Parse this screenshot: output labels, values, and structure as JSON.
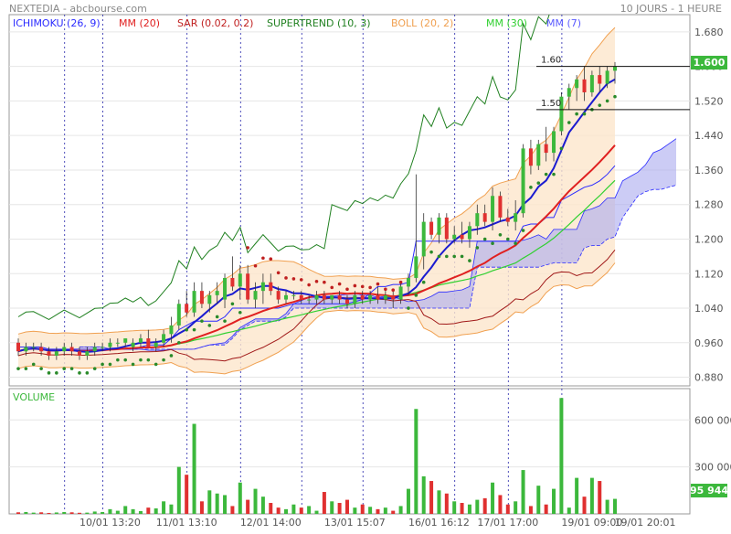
{
  "header": {
    "title": "NEXTEDIA - abcbourse.com",
    "period": "10 JOURS - 1 HEURE"
  },
  "legend": [
    {
      "label": "ICHIMOKU (26, 9)",
      "color": "#2b2bff"
    },
    {
      "label": "MM (20)",
      "color": "#e02020"
    },
    {
      "label": "SAR (0.02, 0.2)",
      "color": "#c02020"
    },
    {
      "label": "SUPERTREND (10, 3)",
      "color": "#208020"
    },
    {
      "label": "BOLL (20, 2)",
      "color": "#f0a050"
    },
    {
      "label": "MM (30)",
      "color": "#30d030"
    },
    {
      "label": "MM (7)",
      "color": "#5a5aff"
    }
  ],
  "volume_label": "VOLUME",
  "colors": {
    "up": "#3cb83c",
    "down": "#e03030",
    "ichimoku_cloud": "#aaaaee",
    "boll_fill": "#fde6cc",
    "price_tag": "#3cb83c"
  },
  "chart_data": [
    {
      "type": "candlestick",
      "ylim": [
        0.86,
        1.72
      ],
      "y_ticks": [
        "0.880",
        "0.960",
        "1.040",
        "1.120",
        "1.200",
        "1.280",
        "1.360",
        "1.440",
        "1.520",
        "1.600",
        "1.680"
      ],
      "x_ticks": [
        "10/01 13:20",
        "11/01 13:10",
        "12/01 14:00",
        "13/01 15:07",
        "16/01 16:12",
        "17/01 17:00",
        "19/01 09:00",
        "19/01 20:01"
      ],
      "last_price": "1.600",
      "levels": [
        {
          "label": "1.60",
          "value": 1.6
        },
        {
          "label": "1.50",
          "value": 1.5
        }
      ],
      "candles": [
        [
          0.96,
          0.97,
          0.93,
          0.94
        ],
        [
          0.94,
          0.96,
          0.93,
          0.95
        ],
        [
          0.95,
          0.96,
          0.94,
          0.95
        ],
        [
          0.95,
          0.96,
          0.93,
          0.94
        ],
        [
          0.94,
          0.95,
          0.92,
          0.93
        ],
        [
          0.93,
          0.95,
          0.92,
          0.94
        ],
        [
          0.94,
          0.96,
          0.93,
          0.95
        ],
        [
          0.95,
          0.96,
          0.93,
          0.94
        ],
        [
          0.94,
          0.95,
          0.92,
          0.93
        ],
        [
          0.93,
          0.95,
          0.92,
          0.94
        ],
        [
          0.94,
          0.96,
          0.93,
          0.95
        ],
        [
          0.95,
          0.96,
          0.94,
          0.95
        ],
        [
          0.95,
          0.97,
          0.94,
          0.96
        ],
        [
          0.96,
          0.97,
          0.95,
          0.96
        ],
        [
          0.96,
          0.97,
          0.95,
          0.97
        ],
        [
          0.95,
          0.97,
          0.94,
          0.96
        ],
        [
          0.96,
          0.98,
          0.95,
          0.97
        ],
        [
          0.97,
          0.99,
          0.95,
          0.95
        ],
        [
          0.95,
          0.97,
          0.94,
          0.96
        ],
        [
          0.96,
          0.99,
          0.95,
          0.98
        ],
        [
          0.98,
          1.02,
          0.96,
          1.0
        ],
        [
          1.0,
          1.06,
          0.99,
          1.05
        ],
        [
          1.05,
          1.08,
          1.02,
          1.03
        ],
        [
          1.03,
          1.1,
          1.02,
          1.08
        ],
        [
          1.08,
          1.1,
          1.04,
          1.05
        ],
        [
          1.05,
          1.08,
          1.03,
          1.07
        ],
        [
          1.07,
          1.1,
          1.05,
          1.08
        ],
        [
          1.06,
          1.12,
          1.04,
          1.11
        ],
        [
          1.11,
          1.16,
          1.08,
          1.09
        ],
        [
          1.09,
          1.14,
          1.06,
          1.12
        ],
        [
          1.12,
          1.14,
          1.05,
          1.06
        ],
        [
          1.06,
          1.1,
          1.04,
          1.08
        ],
        [
          1.08,
          1.12,
          1.05,
          1.1
        ],
        [
          1.1,
          1.12,
          1.07,
          1.08
        ],
        [
          1.08,
          1.09,
          1.05,
          1.06
        ],
        [
          1.06,
          1.08,
          1.05,
          1.07
        ],
        [
          1.07,
          1.08,
          1.06,
          1.07
        ],
        [
          1.07,
          1.08,
          1.05,
          1.06
        ],
        [
          1.06,
          1.07,
          1.05,
          1.06
        ],
        [
          1.06,
          1.08,
          1.05,
          1.07
        ],
        [
          1.07,
          1.08,
          1.05,
          1.06
        ],
        [
          1.06,
          1.07,
          1.05,
          1.07
        ],
        [
          1.07,
          1.08,
          1.05,
          1.06
        ],
        [
          1.06,
          1.07,
          1.04,
          1.05
        ],
        [
          1.05,
          1.08,
          1.04,
          1.07
        ],
        [
          1.07,
          1.08,
          1.05,
          1.06
        ],
        [
          1.06,
          1.08,
          1.05,
          1.07
        ],
        [
          1.07,
          1.09,
          1.05,
          1.06
        ],
        [
          1.06,
          1.08,
          1.05,
          1.07
        ],
        [
          1.07,
          1.08,
          1.04,
          1.06
        ],
        [
          1.06,
          1.1,
          1.05,
          1.09
        ],
        [
          1.09,
          1.12,
          1.07,
          1.11
        ],
        [
          1.11,
          1.35,
          1.1,
          1.16
        ],
        [
          1.16,
          1.26,
          1.13,
          1.24
        ],
        [
          1.24,
          1.25,
          1.2,
          1.21
        ],
        [
          1.21,
          1.26,
          1.19,
          1.25
        ],
        [
          1.25,
          1.26,
          1.19,
          1.2
        ],
        [
          1.2,
          1.23,
          1.19,
          1.21
        ],
        [
          1.21,
          1.24,
          1.19,
          1.2
        ],
        [
          1.2,
          1.24,
          1.18,
          1.23
        ],
        [
          1.23,
          1.28,
          1.21,
          1.26
        ],
        [
          1.26,
          1.28,
          1.23,
          1.24
        ],
        [
          1.24,
          1.32,
          1.22,
          1.3
        ],
        [
          1.3,
          1.31,
          1.24,
          1.25
        ],
        [
          1.25,
          1.27,
          1.23,
          1.24
        ],
        [
          1.24,
          1.29,
          1.22,
          1.26
        ],
        [
          1.26,
          1.42,
          1.25,
          1.41
        ],
        [
          1.41,
          1.43,
          1.35,
          1.37
        ],
        [
          1.37,
          1.43,
          1.36,
          1.42
        ],
        [
          1.42,
          1.46,
          1.38,
          1.4
        ],
        [
          1.4,
          1.46,
          1.38,
          1.45
        ],
        [
          1.45,
          1.54,
          1.44,
          1.53
        ],
        [
          1.53,
          1.56,
          1.5,
          1.55
        ],
        [
          1.55,
          1.58,
          1.52,
          1.57
        ],
        [
          1.57,
          1.6,
          1.52,
          1.54
        ],
        [
          1.54,
          1.59,
          1.53,
          1.58
        ],
        [
          1.58,
          1.6,
          1.54,
          1.56
        ],
        [
          1.56,
          1.6,
          1.55,
          1.59
        ],
        [
          1.59,
          1.61,
          1.56,
          1.6
        ]
      ]
    },
    {
      "type": "bar",
      "title": "VOLUME",
      "ylim": [
        0,
        800000
      ],
      "y_ticks": [
        "300 000",
        "600 000"
      ],
      "last_value": "95 944",
      "values": [
        10000,
        12000,
        8000,
        10000,
        6000,
        9000,
        12000,
        10000,
        7000,
        8000,
        15000,
        12000,
        30000,
        20000,
        50000,
        30000,
        18000,
        40000,
        35000,
        80000,
        60000,
        300000,
        250000,
        575000,
        80000,
        150000,
        130000,
        120000,
        50000,
        200000,
        90000,
        160000,
        110000,
        70000,
        40000,
        30000,
        60000,
        40000,
        50000,
        20000,
        140000,
        80000,
        70000,
        90000,
        40000,
        60000,
        45000,
        30000,
        40000,
        20000,
        50000,
        160000,
        670000,
        240000,
        210000,
        150000,
        130000,
        80000,
        70000,
        60000,
        90000,
        100000,
        200000,
        120000,
        60000,
        80000,
        280000,
        50000,
        180000,
        60000,
        160000,
        740000,
        40000,
        230000,
        110000,
        230000,
        210000,
        90000,
        95944
      ]
    }
  ]
}
